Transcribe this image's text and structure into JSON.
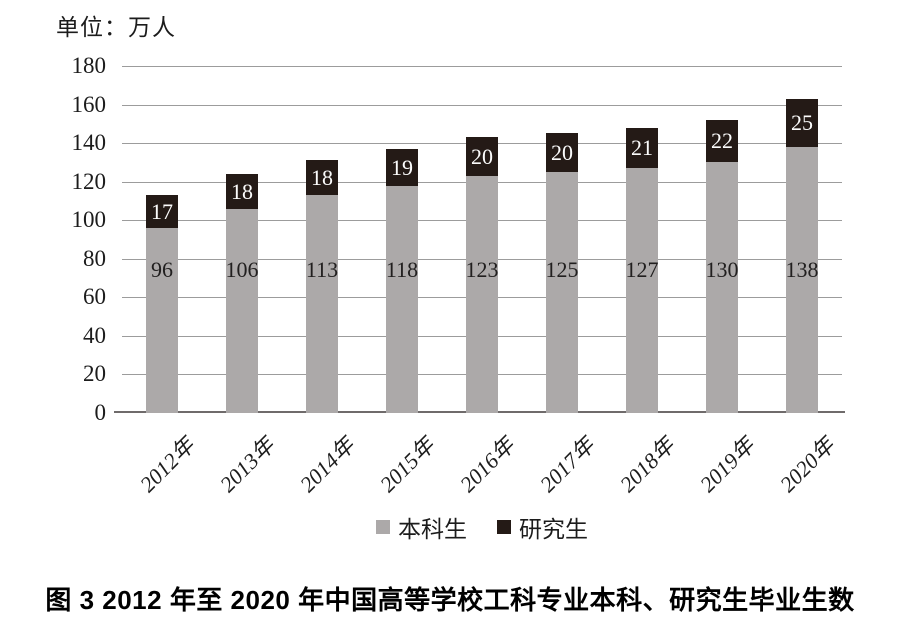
{
  "unit_label": "单位：万人",
  "figure_caption": "图 3  2012 年至 2020 年中国高等学校工科专业本科、研究生毕业生数",
  "legend": {
    "undergrad_label": "本科生",
    "grad_label": "研究生"
  },
  "colors": {
    "undergrad_bar": "#aca9a9",
    "grad_bar": "#241a16",
    "gridline": "#9c9c9c",
    "axis_line": "#6f6b6b"
  },
  "chart_data": {
    "type": "bar",
    "stacked": true,
    "title": "",
    "unit": "万人",
    "categories": [
      "2012年",
      "2013年",
      "2014年",
      "2015年",
      "2016年",
      "2017年",
      "2018年",
      "2019年",
      "2020年"
    ],
    "series": [
      {
        "name": "本科生",
        "color": "#aca9a9",
        "values": [
          96,
          106,
          113,
          118,
          123,
          125,
          127,
          130,
          138
        ]
      },
      {
        "name": "研究生",
        "color": "#241a16",
        "values": [
          17,
          18,
          18,
          19,
          20,
          20,
          21,
          22,
          25
        ]
      }
    ],
    "ylim": [
      0,
      180
    ],
    "ytick_step": 20,
    "yticks": [
      0,
      20,
      40,
      60,
      80,
      100,
      120,
      140,
      160,
      180
    ],
    "grid": true,
    "legend_position": "bottom",
    "value_labels": "shown-on-bars"
  }
}
